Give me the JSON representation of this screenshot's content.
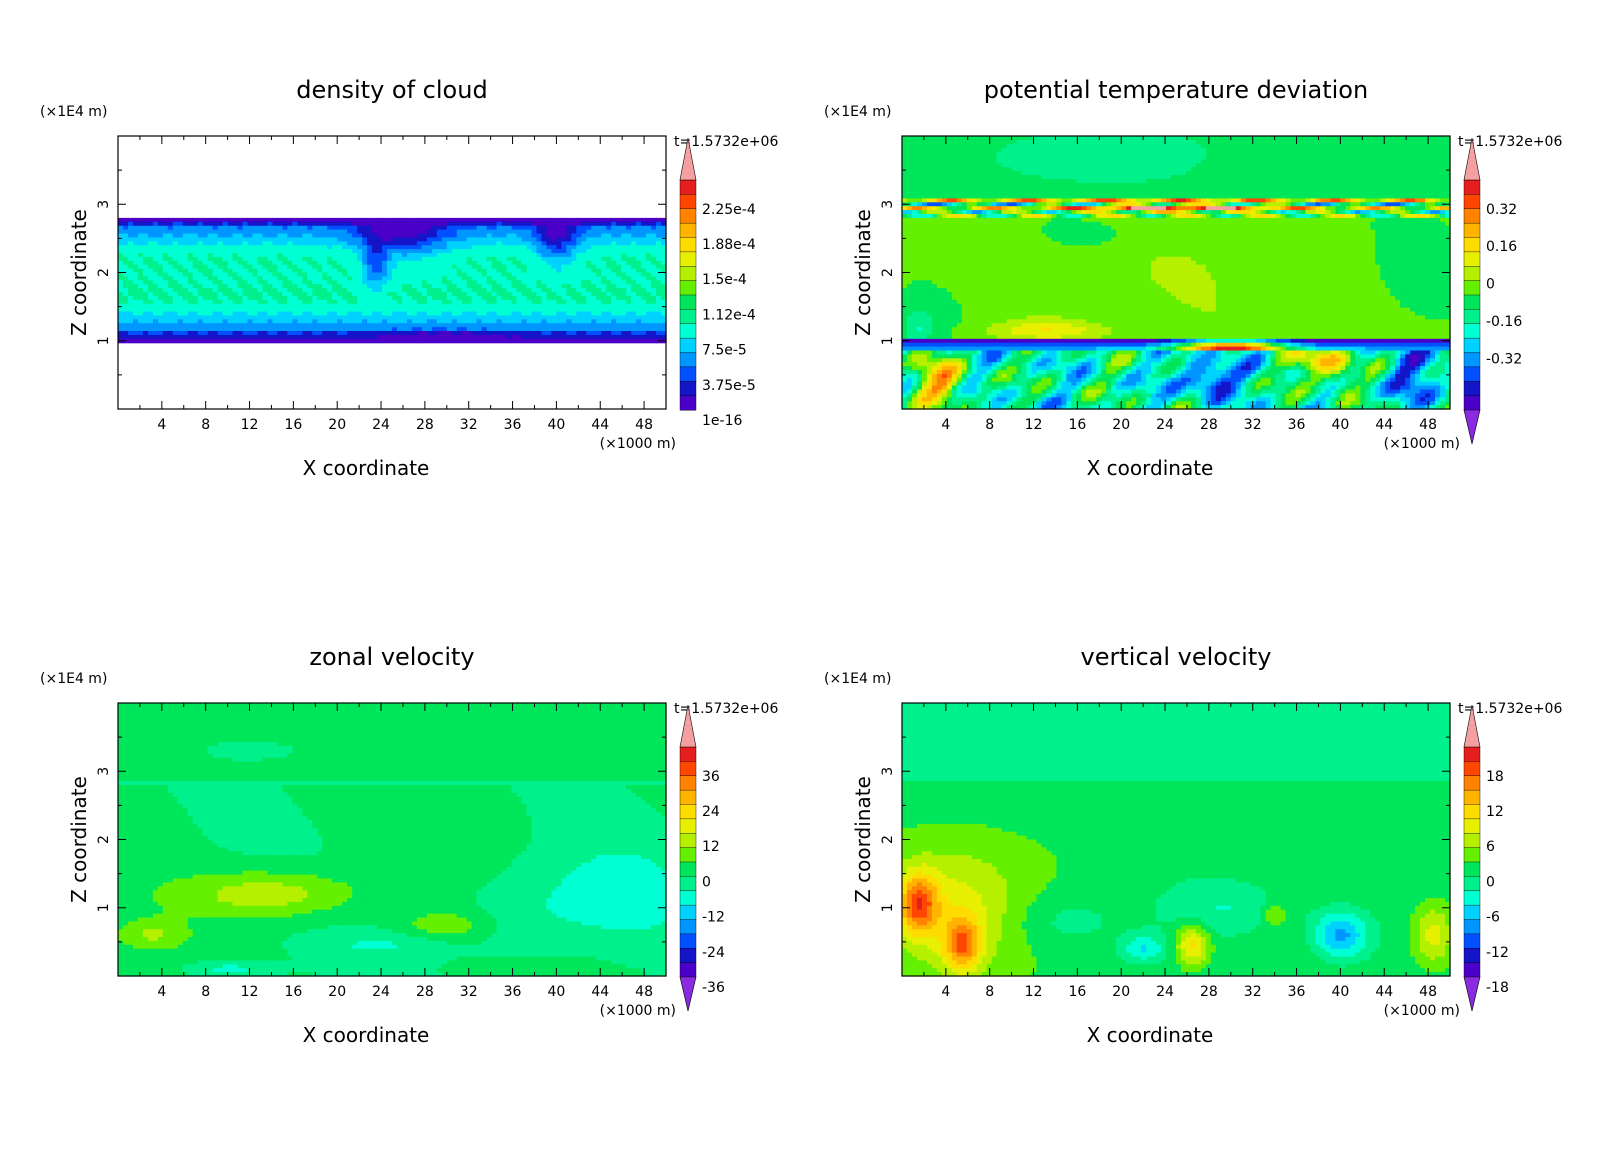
{
  "figure": {
    "background": "#ffffff"
  },
  "chart_data": [
    {
      "type": "heatmap",
      "title": "density of cloud",
      "xlabel": "X coordinate",
      "ylabel": "Z coordinate",
      "x_unit": "(×1000 m)",
      "y_unit": "(×1E4 m)",
      "time_label": "t=1.5732e+06",
      "xlim": [
        0,
        50
      ],
      "ylim": [
        0,
        4
      ],
      "xticks": [
        "4",
        "8",
        "12",
        "16",
        "20",
        "24",
        "28",
        "32",
        "36",
        "40",
        "44",
        "48"
      ],
      "yticks": [
        "1",
        "2",
        "3"
      ],
      "colorbar": {
        "labels": [
          "2.25e-4",
          "1.88e-4",
          "1.5e-4",
          "1.12e-4",
          "7.5e-5",
          "3.75e-5",
          "1e-16"
        ],
        "has_top_triangle": true,
        "has_bottom_triangle": false
      },
      "field": "cloud",
      "notes_visible_structure": "cloud layer between z=1 and z=2.8, empty elsewhere"
    },
    {
      "type": "heatmap",
      "title": "potential temperature deviation",
      "xlabel": "X coordinate",
      "ylabel": "Z coordinate",
      "x_unit": "(×1000 m)",
      "y_unit": "(×1E4 m)",
      "time_label": "t=1.5732e+06",
      "xlim": [
        0,
        50
      ],
      "ylim": [
        0,
        4
      ],
      "xticks": [
        "4",
        "8",
        "12",
        "16",
        "20",
        "24",
        "28",
        "32",
        "36",
        "40",
        "44",
        "48"
      ],
      "yticks": [
        "1",
        "2",
        "3"
      ],
      "colorbar": {
        "labels": [
          "0.32",
          "0.16",
          "0",
          "-0.16",
          "-0.32"
        ],
        "has_top_triangle": true,
        "has_bottom_triangle": true
      },
      "field": "theta"
    },
    {
      "type": "heatmap",
      "title": "zonal velocity",
      "xlabel": "X coordinate",
      "ylabel": "Z coordinate",
      "x_unit": "(×1000 m)",
      "y_unit": "(×1E4 m)",
      "time_label": "t=1.5732e+06",
      "xlim": [
        0,
        50
      ],
      "ylim": [
        0,
        4
      ],
      "xticks": [
        "4",
        "8",
        "12",
        "16",
        "20",
        "24",
        "28",
        "32",
        "36",
        "40",
        "44",
        "48"
      ],
      "yticks": [
        "1",
        "2",
        "3"
      ],
      "colorbar": {
        "labels": [
          "36",
          "24",
          "12",
          "0",
          "-12",
          "-24",
          "-36"
        ],
        "has_top_triangle": true,
        "has_bottom_triangle": true
      },
      "field": "u"
    },
    {
      "type": "heatmap",
      "title": "vertical velocity",
      "xlabel": "X coordinate",
      "ylabel": "Z coordinate",
      "x_unit": "(×1000 m)",
      "y_unit": "(×1E4 m)",
      "time_label": "t=1.5732e+06",
      "xlim": [
        0,
        50
      ],
      "ylim": [
        0,
        4
      ],
      "xticks": [
        "4",
        "8",
        "12",
        "16",
        "20",
        "24",
        "28",
        "32",
        "36",
        "40",
        "44",
        "48"
      ],
      "yticks": [
        "1",
        "2",
        "3"
      ],
      "colorbar": {
        "labels": [
          "18",
          "12",
          "6",
          "0",
          "-6",
          "-12",
          "-18"
        ],
        "has_top_triangle": true,
        "has_bottom_triangle": true
      },
      "field": "w"
    }
  ],
  "palette": [
    "#8a2be2",
    "#4b00c8",
    "#1414c8",
    "#0050ff",
    "#0096ff",
    "#00d2ff",
    "#00ffd2",
    "#00f08c",
    "#00e65a",
    "#64f000",
    "#b4f000",
    "#e6f000",
    "#ffdc00",
    "#ffb400",
    "#ff8200",
    "#ff4600",
    "#e61e1e",
    "#f5a0a0"
  ]
}
